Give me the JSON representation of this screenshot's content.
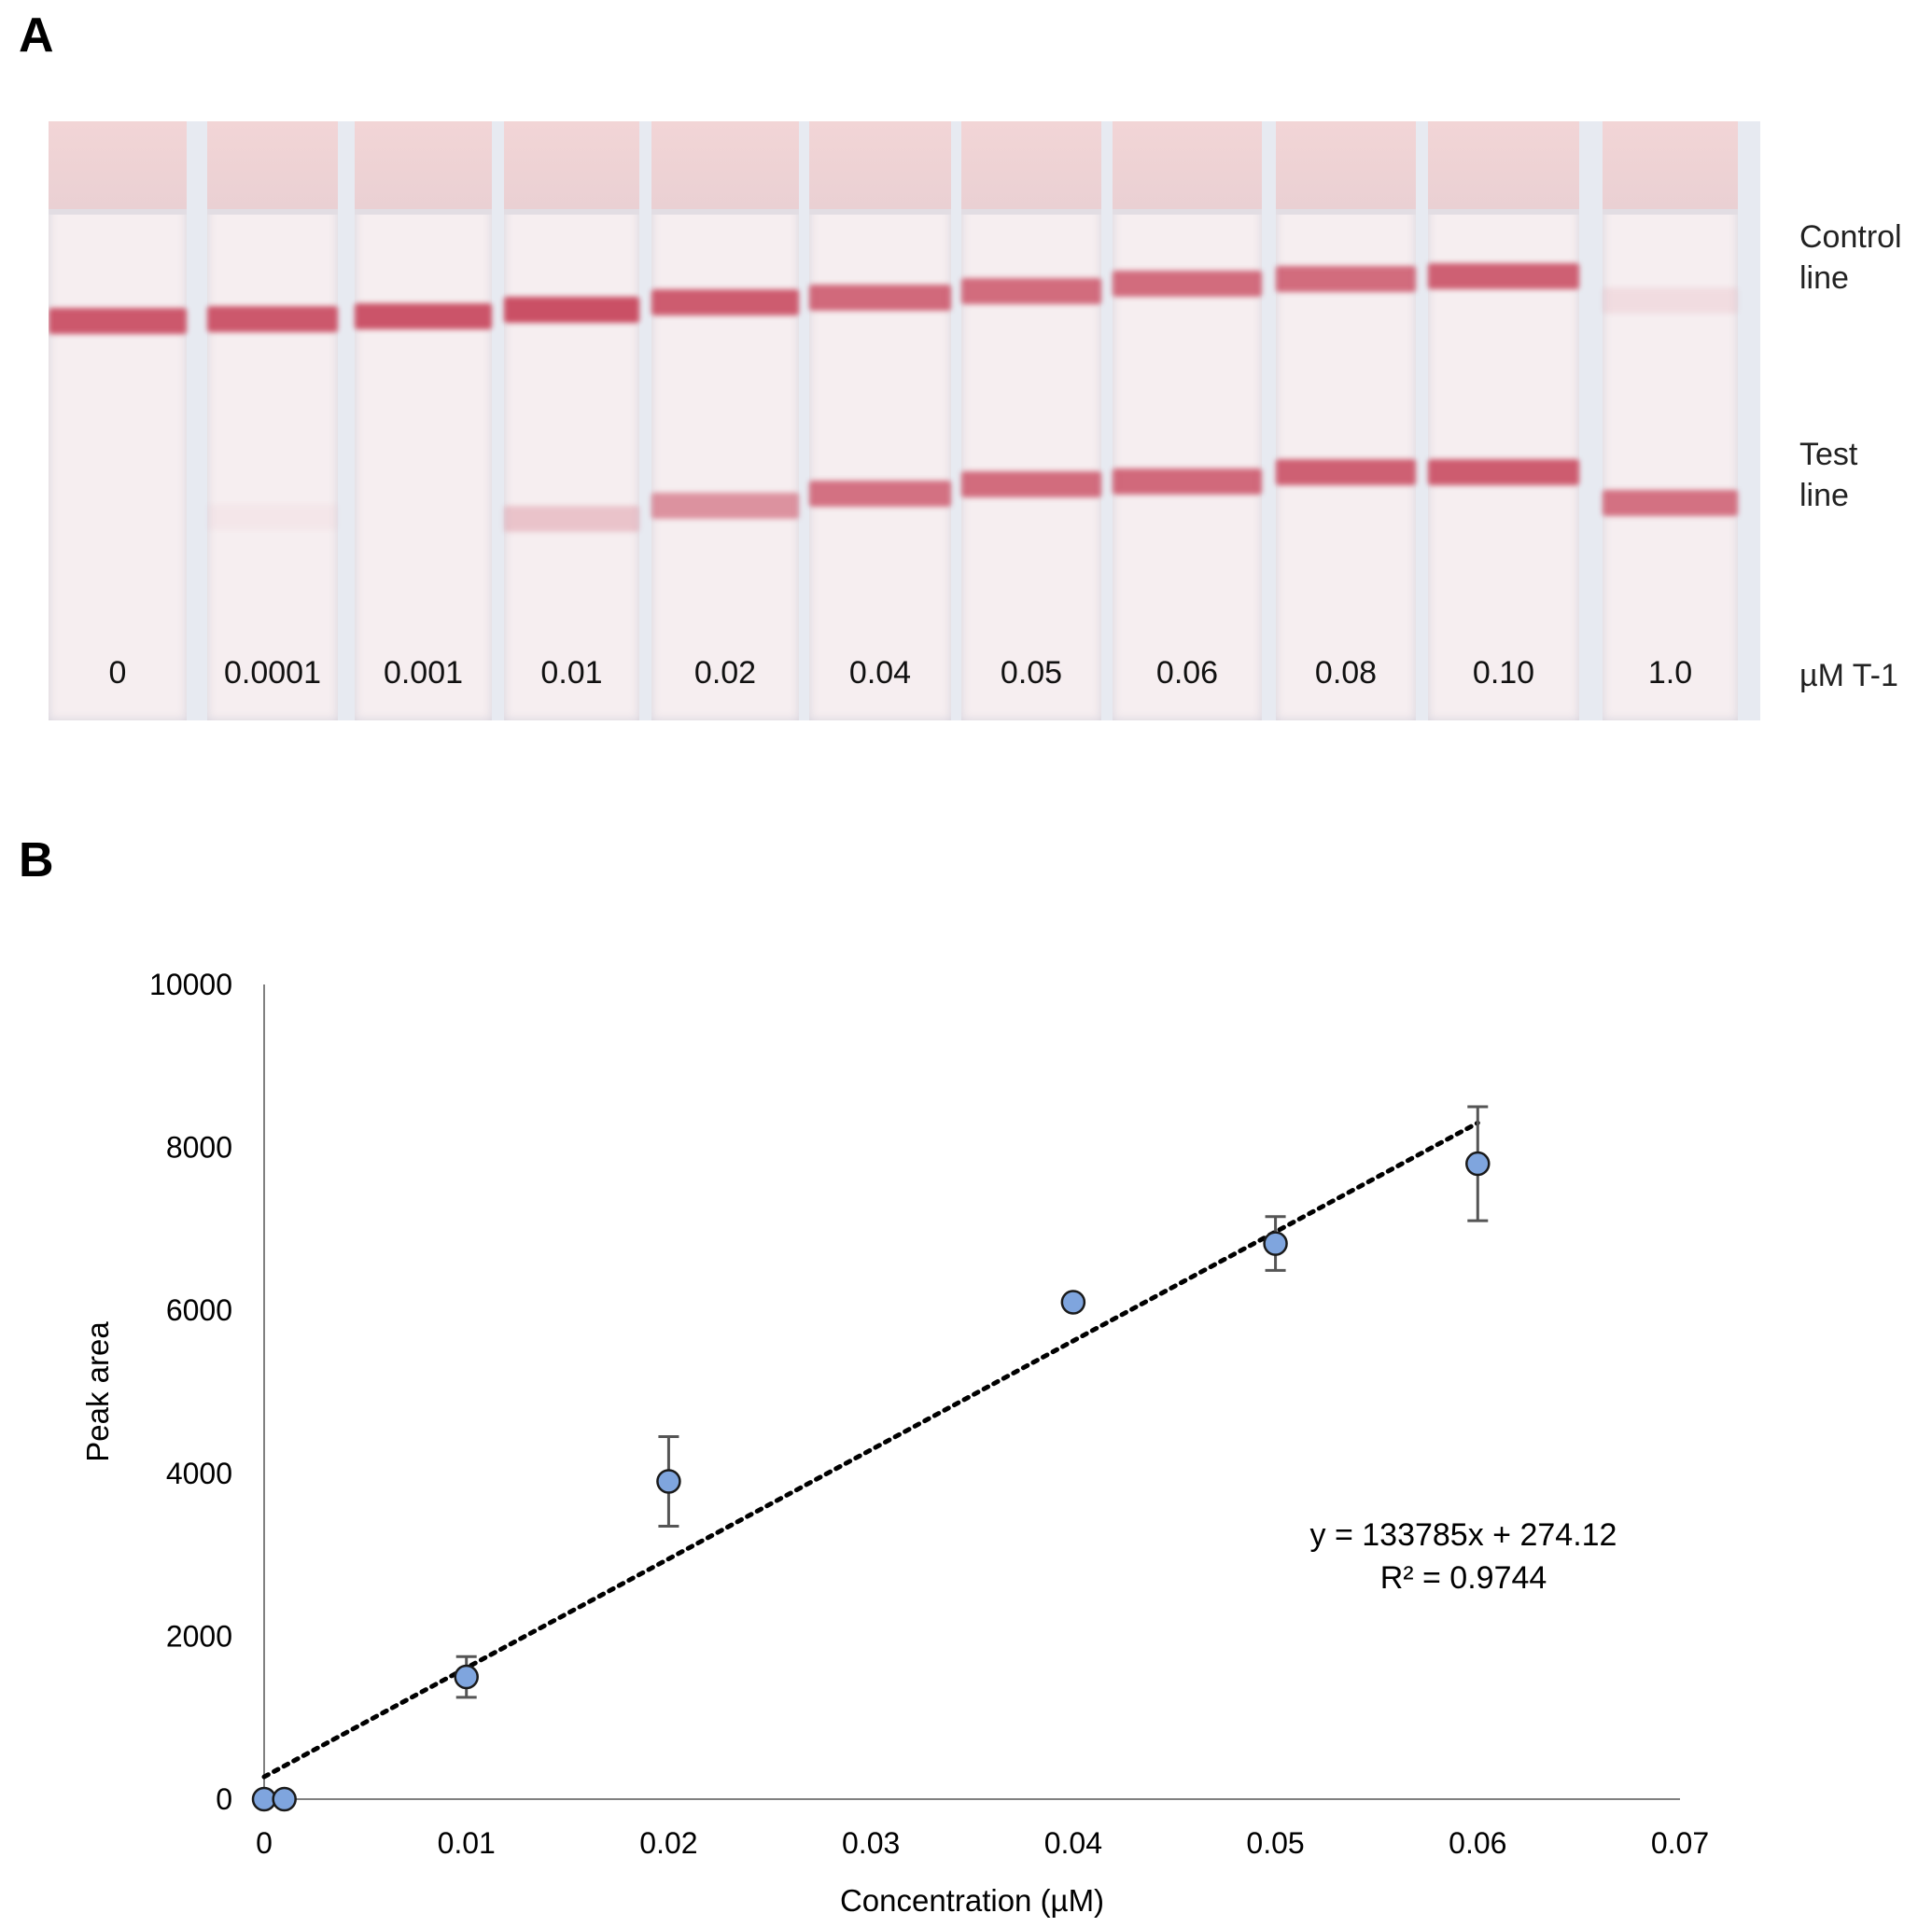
{
  "panel_a": {
    "letter": "A",
    "control_label": [
      "Control",
      "line"
    ],
    "test_label": [
      "Test",
      "line"
    ],
    "unit_label": "µM T-1",
    "strips": [
      {
        "concentration": "0",
        "control_intensity": 0.9,
        "test_intensity": 0.0
      },
      {
        "concentration": "0.0001",
        "control_intensity": 0.9,
        "test_intensity": 0.04
      },
      {
        "concentration": "0.001",
        "control_intensity": 0.92,
        "test_intensity": 0.0
      },
      {
        "concentration": "0.01",
        "control_intensity": 0.95,
        "test_intensity": 0.25
      },
      {
        "concentration": "0.02",
        "control_intensity": 0.88,
        "test_intensity": 0.55
      },
      {
        "concentration": "0.04",
        "control_intensity": 0.8,
        "test_intensity": 0.75
      },
      {
        "concentration": "0.05",
        "control_intensity": 0.78,
        "test_intensity": 0.78
      },
      {
        "concentration": "0.06",
        "control_intensity": 0.78,
        "test_intensity": 0.8
      },
      {
        "concentration": "0.08",
        "control_intensity": 0.78,
        "test_intensity": 0.85
      },
      {
        "concentration": "0.10",
        "control_intensity": 0.85,
        "test_intensity": 0.88
      },
      {
        "concentration": "1.0",
        "control_intensity": 0.1,
        "test_intensity": 0.75
      }
    ],
    "band_color": "#c8485e"
  },
  "panel_b": {
    "letter": "B",
    "chart_data": {
      "type": "scatter",
      "xlabel": "Concentration (µM)",
      "ylabel": "Peak area",
      "xlim": [
        0,
        0.07
      ],
      "ylim": [
        0,
        10000
      ],
      "x_ticks": [
        "0",
        "0.01",
        "0.02",
        "0.03",
        "0.04",
        "0.05",
        "0.06",
        "0.07"
      ],
      "y_ticks": [
        "0",
        "2000",
        "4000",
        "6000",
        "8000",
        "10000"
      ],
      "points": [
        {
          "x": 0.0,
          "y": 0,
          "err": 0
        },
        {
          "x": 0.001,
          "y": 0,
          "err": 0
        },
        {
          "x": 0.01,
          "y": 1500,
          "err": 250
        },
        {
          "x": 0.02,
          "y": 3900,
          "err": 550
        },
        {
          "x": 0.04,
          "y": 6100,
          "err": 0
        },
        {
          "x": 0.05,
          "y": 6820,
          "err": 330
        },
        {
          "x": 0.06,
          "y": 7800,
          "err": 700
        }
      ],
      "trendline": {
        "slope": 133785,
        "intercept": 274.12,
        "x_range": [
          0,
          0.06
        ],
        "style": "dotted"
      },
      "equation": [
        "y = 133785x + 274.12",
        "R² = 0.9744"
      ],
      "marker_color": "#7fa5de",
      "grid": false,
      "legend": "none"
    }
  }
}
